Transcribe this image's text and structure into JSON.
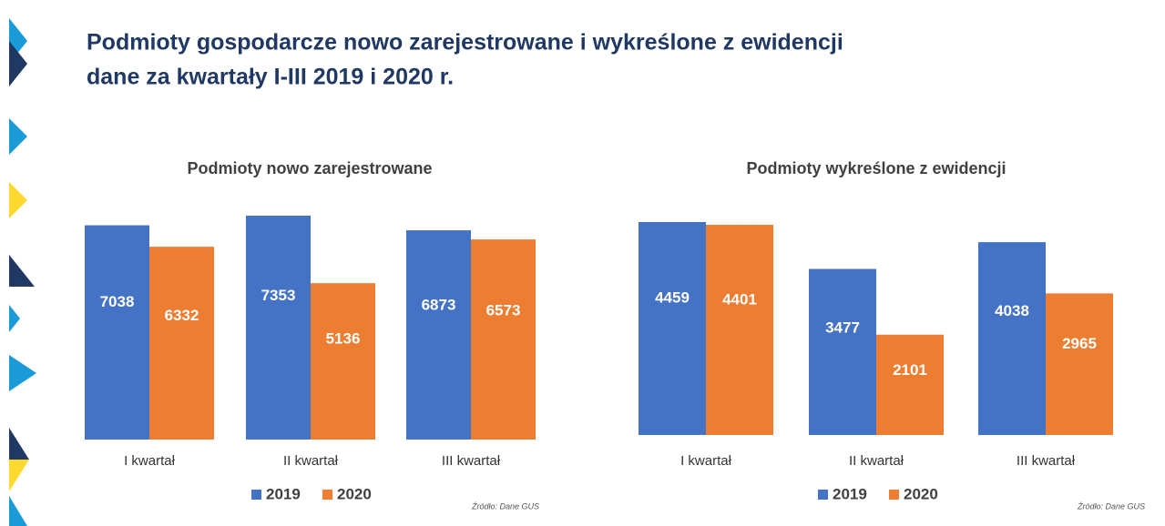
{
  "title": [
    "Podmioty gospodarcze nowo zarejestrowane i wykreślone z ewidencji",
    "dane za kwartały I-III 2019 i 2020 r."
  ],
  "chart_data": [
    {
      "type": "bar",
      "title": "Podmioty nowo zarejestrowane",
      "categories": [
        "I kwartał",
        "II kwartał",
        "III kwartał"
      ],
      "series": [
        {
          "name": "2019",
          "color": "#4472c4",
          "values": [
            7038,
            7353,
            6873
          ]
        },
        {
          "name": "2020",
          "color": "#ed7d31",
          "values": [
            6332,
            5136,
            6573
          ]
        }
      ],
      "note": "Źródło: Dane GUS"
    },
    {
      "type": "bar",
      "title": "Podmioty wykreślone z ewidencji",
      "categories": [
        "I kwartał",
        "II kwartał",
        "III kwartał"
      ],
      "series": [
        {
          "name": "2019",
          "color": "#4472c4",
          "values": [
            4459,
            3477,
            4038
          ]
        },
        {
          "name": "2020",
          "color": "#ed7d31",
          "values": [
            4401,
            2101,
            2965
          ]
        }
      ],
      "note": "Źródło: Dane GUS"
    }
  ]
}
